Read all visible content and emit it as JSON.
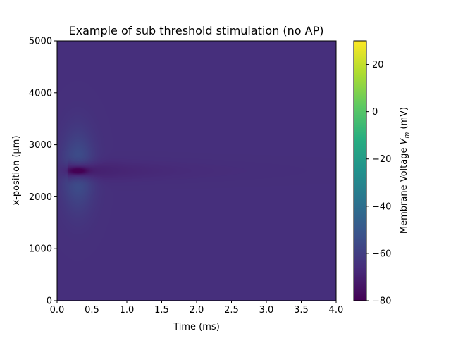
{
  "chart_data": {
    "type": "heatmap",
    "title": "Example of sub threshold stimulation (no AP)",
    "xlabel": "Time (ms)",
    "ylabel": "x-position (µm)",
    "colorbar_label": "Membrane Voltage V_m (mV)",
    "colorbar_label_parts": {
      "prefix": "Membrane Voltage ",
      "var": "V",
      "sub": "m",
      "suffix": " (mV)"
    },
    "colormap": "viridis",
    "xlim": [
      0.0,
      4.0
    ],
    "ylim": [
      0,
      5000
    ],
    "clim": [
      -80,
      30
    ],
    "xticks": [
      "0.0",
      "0.5",
      "1.0",
      "1.5",
      "2.0",
      "2.5",
      "3.0",
      "3.5",
      "4.0"
    ],
    "yticks": [
      "0",
      "1000",
      "2000",
      "3000",
      "4000",
      "5000"
    ],
    "cticks": [
      "20",
      "0",
      "−20",
      "−40",
      "−60",
      "−80"
    ],
    "resting_potential_mV": -65,
    "features": [
      {
        "name": "stimulus hyperpolarization core",
        "t_ms": 0.3,
        "x_um": 2500,
        "min_mV": -78
      },
      {
        "name": "depolarized flanks",
        "t_ms": 0.3,
        "x_um_range": [
          2100,
          2900
        ],
        "max_mV": -53
      },
      {
        "name": "decaying trail",
        "t_ms_range": [
          0.3,
          3.5
        ],
        "x_um": 2500,
        "mV_range": [
          -72,
          -66
        ]
      }
    ]
  }
}
